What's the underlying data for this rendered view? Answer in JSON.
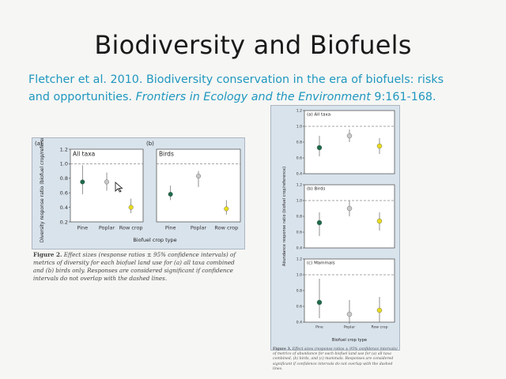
{
  "slide": {
    "title": "Biodiversity and Biofuels",
    "citation_line1": "Fletcher et al. 2010. Biodiversity conservation in the era of biofuels: risks",
    "citation_line2_plain": "and opportunities. ",
    "citation_journal": "Frontiers in Ecology and the Environment",
    "citation_volume": " 9:161-168."
  },
  "colors": {
    "title": "#1a1a1a",
    "citation": "#1f97bf",
    "figure_bg": "#d9e3ec",
    "pine": "#1b6b4a",
    "poplar": "#c8c8c8",
    "row_crop": "#e8dc1e"
  },
  "figure2": {
    "caption_label": "Figure 2.",
    "caption_text": " Effect sizes (response ratios ± 95% confidence intervals) of metrics of diversity for each biofuel land use for (a) all taxa combined and (b) birds only. Responses are considered significant if confidence intervals do not overlap with the dashed lines.",
    "ylabel": "Diversity response ratio (biofuel crop/reference)",
    "xlabel": "Biofuel crop type"
  },
  "figure3": {
    "caption_label": "Figure 3.",
    "caption_text": " Effect sizes (response ratios ± 95% confidence intervals) of metrics of abundance for each biofuel land use for (a) all taxa combined, (b) birds, and (c) mammals. Responses are considered significant if confidence intervals do not overlap with the dashed lines.",
    "ylabel": "Abundance response ratio (biofuel crop/reference)",
    "xlabel": "Biofuel crop type"
  },
  "chart_data": [
    {
      "type": "scatter",
      "panel": "(a)",
      "title": "All taxa",
      "categories": [
        "Pine",
        "Poplar",
        "Row crop"
      ],
      "values": [
        0.75,
        0.75,
        0.4
      ],
      "ci_low": [
        0.58,
        0.63,
        0.32
      ],
      "ci_high": [
        0.98,
        0.88,
        0.52
      ],
      "ylim": [
        0.2,
        1.2
      ],
      "yticks": [
        "0.2",
        "0.4",
        "0.6",
        "0.8",
        "1.0",
        "1.2"
      ],
      "reference_line": 1.0,
      "ylabel": "Diversity response ratio (biofuel crop/reference)",
      "xlabel": "Biofuel crop type"
    },
    {
      "type": "scatter",
      "panel": "(b)",
      "title": "Birds",
      "categories": [
        "Pine",
        "Poplar",
        "Row crop"
      ],
      "values": [
        0.58,
        0.83,
        0.38
      ],
      "ci_low": [
        0.5,
        0.68,
        0.3
      ],
      "ci_high": [
        0.7,
        0.9,
        0.5
      ],
      "ylim": [
        0.2,
        1.2
      ],
      "reference_line": 1.0,
      "xlabel": "Biofuel crop type"
    },
    {
      "type": "scatter",
      "panel": "(a)",
      "title": "All taxa",
      "categories": [
        "Pine",
        "Poplar",
        "Row crop"
      ],
      "values": [
        0.73,
        0.88,
        0.75
      ],
      "ci_low": [
        0.62,
        0.8,
        0.65
      ],
      "ci_high": [
        0.88,
        0.96,
        0.85
      ],
      "ylim": [
        0.4,
        1.2
      ],
      "yticks": [
        "0.4",
        "0.6",
        "0.8",
        "1.0",
        "1.2"
      ],
      "reference_line": 1.0,
      "ylabel": "Abundance response ratio (biofuel crop/reference)"
    },
    {
      "type": "scatter",
      "panel": "(b)",
      "title": "Birds",
      "categories": [
        "Pine",
        "Poplar",
        "Row crop"
      ],
      "values": [
        0.72,
        0.9,
        0.74
      ],
      "ci_low": [
        0.55,
        0.8,
        0.62
      ],
      "ci_high": [
        0.85,
        1.0,
        0.85
      ],
      "ylim": [
        0.4,
        1.2
      ],
      "yticks": [
        "0.4",
        "0.6",
        "0.8",
        "1.0",
        "1.2"
      ],
      "reference_line": 1.0
    },
    {
      "type": "scatter",
      "panel": "(c)",
      "title": "Mammals",
      "categories": [
        "Pine",
        "Poplar",
        "Row crop"
      ],
      "values": [
        0.65,
        0.5,
        0.55
      ],
      "ci_low": [
        0.45,
        0.38,
        0.4
      ],
      "ci_high": [
        0.95,
        0.68,
        0.72
      ],
      "ylim": [
        0.4,
        1.2
      ],
      "yticks": [
        "0.4",
        "0.6",
        "0.8",
        "1.0",
        "1.2"
      ],
      "reference_line": 1.0,
      "xlabel": "Biofuel crop type"
    }
  ]
}
